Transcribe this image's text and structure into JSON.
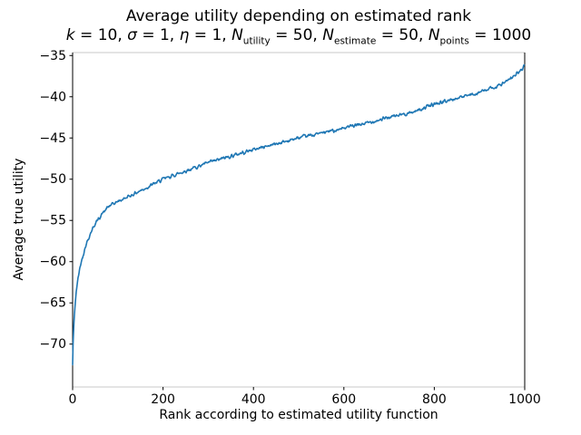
{
  "chart_data": {
    "type": "line",
    "title": "Average utility depending on estimated rank",
    "subtitle": "k = 10, σ = 1, η = 1, N_utility = 50, N_estimate = 50, N_points = 1000",
    "subtitle_segments": [
      {
        "text": "k",
        "italic": true
      },
      {
        "text": " = 10, ",
        "italic": false
      },
      {
        "text": "σ",
        "italic": true
      },
      {
        "text": " = 1, ",
        "italic": false
      },
      {
        "text": "η",
        "italic": true
      },
      {
        "text": " = 1, ",
        "italic": false
      },
      {
        "text": "N",
        "italic": true
      },
      {
        "text": "utility",
        "sub": true
      },
      {
        "text": " = 50, ",
        "italic": false
      },
      {
        "text": "N",
        "italic": true
      },
      {
        "text": "estimate",
        "sub": true
      },
      {
        "text": " = 50, ",
        "italic": false
      },
      {
        "text": "N",
        "italic": true
      },
      {
        "text": "points",
        "sub": true
      },
      {
        "text": " = 1000",
        "italic": false
      }
    ],
    "xlabel": "Rank according to estimated utility function",
    "ylabel": "Average true utility",
    "xlim": [
      0,
      1000
    ],
    "ylim": [
      -75.2,
      -34.64
    ],
    "x_ticks": [
      0,
      200,
      400,
      600,
      800,
      1000
    ],
    "x_tick_labels": [
      "0",
      "200",
      "400",
      "600",
      "800",
      "1000"
    ],
    "y_ticks": [
      -35,
      -40,
      -45,
      -50,
      -55,
      -60,
      -65,
      -70
    ],
    "y_tick_labels": [
      "−35",
      "−40",
      "−45",
      "−50",
      "−55",
      "−60",
      "−65",
      "−70"
    ],
    "line_color": "#1f77b4",
    "line_width": 1.6,
    "axis_color": "#000000",
    "boundary_color": "#c9c9c9",
    "grid": false,
    "legend": null,
    "n_points": 1000,
    "noise_amplitude": 0.22,
    "anchor_points": [
      [
        0,
        -72.5
      ],
      [
        1,
        -70.0
      ],
      [
        2,
        -68.6
      ],
      [
        3,
        -67.4
      ],
      [
        4,
        -66.4
      ],
      [
        5,
        -65.6
      ],
      [
        6,
        -64.9
      ],
      [
        8,
        -63.7
      ],
      [
        10,
        -62.8
      ],
      [
        12,
        -62.0
      ],
      [
        15,
        -61.0
      ],
      [
        20,
        -59.8
      ],
      [
        25,
        -58.8
      ],
      [
        30,
        -57.9
      ],
      [
        35,
        -57.2
      ],
      [
        40,
        -56.5
      ],
      [
        45,
        -55.9
      ],
      [
        50,
        -55.4
      ],
      [
        55,
        -55.0
      ],
      [
        65,
        -54.2
      ],
      [
        80,
        -53.3
      ],
      [
        100,
        -52.7
      ],
      [
        120,
        -52.2
      ],
      [
        150,
        -51.4
      ],
      [
        200,
        -50.0
      ],
      [
        250,
        -49.0
      ],
      [
        300,
        -48.0
      ],
      [
        350,
        -47.2
      ],
      [
        400,
        -46.4
      ],
      [
        450,
        -45.7
      ],
      [
        500,
        -45.0
      ],
      [
        550,
        -44.4
      ],
      [
        600,
        -43.8
      ],
      [
        650,
        -43.2
      ],
      [
        700,
        -42.5
      ],
      [
        750,
        -41.9
      ],
      [
        800,
        -40.9
      ],
      [
        850,
        -40.2
      ],
      [
        885,
        -39.7
      ],
      [
        920,
        -39.1
      ],
      [
        945,
        -38.6
      ],
      [
        965,
        -38.0
      ],
      [
        976,
        -37.5
      ],
      [
        989,
        -36.9
      ],
      [
        995,
        -36.6
      ],
      [
        999,
        -36.3
      ]
    ]
  }
}
